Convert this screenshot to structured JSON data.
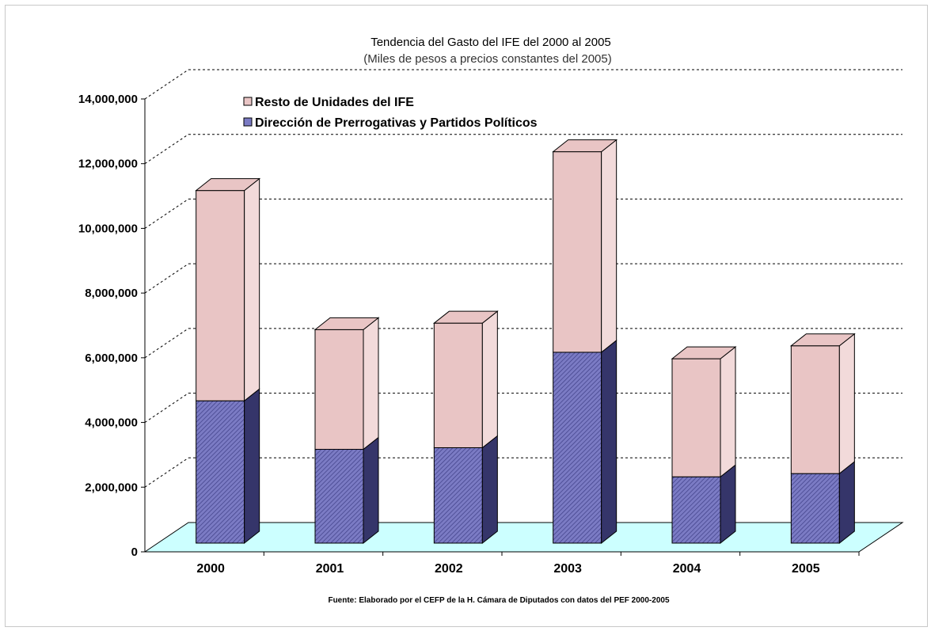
{
  "chart_data": {
    "type": "bar",
    "stacked": true,
    "three_d": true,
    "title": "Tendencia del Gasto del IFE del 2000 al 2005",
    "subtitle": "(Miles de pesos a precios constantes del 2005)",
    "categories": [
      "2000",
      "2001",
      "2002",
      "2003",
      "2004",
      "2005"
    ],
    "series": [
      {
        "name": "Dirección de Prerrogativas y Partidos Políticos",
        "values": [
          4400000,
          2900000,
          2950000,
          5900000,
          2050000,
          2150000
        ],
        "color": "#7b7bc4",
        "side_color": "#35356a"
      },
      {
        "name": "Resto de Unidades del IFE",
        "values": [
          6500000,
          3700000,
          3850000,
          6200000,
          3650000,
          3950000
        ],
        "color": "#e9c5c5",
        "side_color": "#f2dada"
      }
    ],
    "ylim": [
      0,
      14000000
    ],
    "yticks": [
      "0",
      "2,000,000",
      "4,000,000",
      "6,000,000",
      "8,000,000",
      "10,000,000",
      "12,000,000",
      "14,000,000"
    ],
    "grid": true,
    "floor_color": "#ccffff",
    "legend_position": "top-left",
    "source": "Fuente: Elaborado por el CEFP de la H. Cámara de Diputados con datos del PEF 2000-2005"
  }
}
